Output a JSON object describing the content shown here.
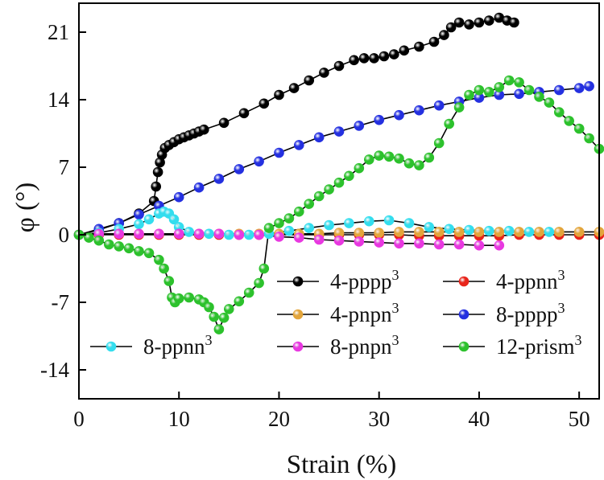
{
  "chart_data": {
    "type": "scatter",
    "xlabel": "Strain (%)",
    "ylabel": "φ (°)",
    "xlim": [
      0,
      52
    ],
    "ylim": [
      -17,
      24
    ],
    "xticks": [
      0,
      10,
      20,
      30,
      40,
      50
    ],
    "yticks": [
      -14,
      -7,
      0,
      7,
      14,
      21
    ],
    "grid": false,
    "legend_position": "lower-right",
    "series": [
      {
        "name": "4-pppp",
        "name_sup": "3",
        "color": "#000000",
        "x": [
          0,
          2,
          4,
          6,
          7.5,
          7.7,
          7.9,
          8.1,
          8.3,
          8.6,
          9,
          9.5,
          10,
          10.5,
          11,
          11.5,
          12,
          12.5,
          14.5,
          16.5,
          18.5,
          20,
          21.5,
          23,
          24.5,
          26,
          27.5,
          28.5,
          29.5,
          30.5,
          31.5,
          32.5,
          34,
          35.5,
          36.5,
          37.2,
          38,
          39,
          40,
          41,
          42,
          42.8,
          43.5
        ],
        "y": [
          0,
          0.5,
          1.2,
          2.2,
          3.5,
          5,
          6.5,
          7.5,
          8.3,
          9,
          9.3,
          9.6,
          9.9,
          10.1,
          10.3,
          10.5,
          10.7,
          10.9,
          11.6,
          12.6,
          13.6,
          14.5,
          15.2,
          16,
          16.8,
          17.5,
          18.1,
          18.3,
          18.3,
          18.5,
          18.7,
          19.1,
          19.5,
          20,
          20.7,
          21.5,
          22,
          21.8,
          22,
          22.2,
          22.5,
          22.2,
          22
        ],
        "show_line": true
      },
      {
        "name": "4-ppnn",
        "name_sup": "3",
        "color": "#e8251b",
        "x": [
          0,
          2,
          4,
          6,
          8,
          10,
          12,
          14,
          16,
          18,
          20,
          22,
          24,
          26,
          28,
          30,
          32,
          34,
          36,
          38,
          40,
          42,
          44,
          46,
          48,
          50,
          52
        ],
        "y": [
          0,
          0,
          0,
          0,
          0,
          0,
          0,
          0,
          0,
          0,
          0,
          0,
          0,
          0,
          0,
          0,
          0,
          -0.1,
          -0.1,
          -0.1,
          -0.1,
          -0.1,
          0,
          0,
          0,
          0,
          0
        ],
        "show_line": true
      },
      {
        "name": "4-pnpn",
        "name_sup": "3",
        "color": "#e3a53b",
        "x": [
          0,
          2,
          4,
          6,
          8,
          10,
          12,
          14,
          16,
          18,
          20,
          22,
          24,
          26,
          28,
          30,
          32,
          34,
          36,
          38,
          40,
          42,
          44,
          46,
          48,
          50,
          52
        ],
        "y": [
          0,
          0.1,
          0.1,
          0.1,
          0.1,
          0.1,
          0.1,
          0.1,
          0.1,
          0.1,
          0.1,
          0.1,
          0.1,
          0.2,
          0.2,
          0.2,
          0.3,
          0.3,
          0.3,
          0.3,
          0.3,
          0.3,
          0.3,
          0.3,
          0.3,
          0.3,
          0.3
        ],
        "show_line": true
      },
      {
        "name": "8-pppp",
        "name_sup": "3",
        "color": "#2430e0",
        "x": [
          0,
          2,
          4,
          6,
          8,
          10,
          12,
          14,
          16,
          18,
          20,
          22,
          24,
          26,
          28,
          30,
          32,
          34,
          36,
          38,
          40,
          42,
          44,
          46,
          48,
          50,
          51
        ],
        "y": [
          0,
          0.6,
          1.2,
          2.1,
          3,
          3.9,
          4.9,
          5.8,
          6.8,
          7.6,
          8.5,
          9.3,
          10.1,
          10.7,
          11.3,
          11.9,
          12.4,
          12.9,
          13.4,
          13.8,
          14.2,
          14.5,
          14.6,
          14.8,
          15,
          15.2,
          15.4
        ],
        "show_line": true
      },
      {
        "name": "8-ppnn",
        "name_sup": "3",
        "color": "#33ddee",
        "x": [
          0,
          2,
          4,
          6,
          7,
          8,
          8.5,
          9,
          9.5,
          10,
          11,
          13,
          15,
          17,
          19,
          21,
          23,
          25,
          27,
          29,
          31,
          33,
          35,
          37,
          39,
          41,
          43,
          45,
          47
        ],
        "y": [
          0,
          0.2,
          0.6,
          1.1,
          1.6,
          2.2,
          2.4,
          2.2,
          1.6,
          0.8,
          0.3,
          0.1,
          0,
          0,
          0.1,
          0.4,
          0.7,
          1,
          1.2,
          1.4,
          1.5,
          1.2,
          0.8,
          0.6,
          0.5,
          0.4,
          0.4,
          0.3,
          0.3
        ],
        "show_line": true
      },
      {
        "name": "8-pnpn",
        "name_sup": "3",
        "color": "#e838e0",
        "x": [
          0,
          2,
          4,
          6,
          8,
          10,
          12,
          14,
          16,
          18,
          20,
          22,
          24,
          26,
          28,
          30,
          32,
          34,
          36,
          38,
          40,
          42
        ],
        "y": [
          0,
          0.1,
          0.1,
          0.1,
          0.1,
          0.1,
          0.1,
          0.1,
          0,
          0,
          -0.2,
          -0.3,
          -0.5,
          -0.6,
          -0.7,
          -0.8,
          -0.9,
          -0.9,
          -1,
          -1,
          -1.1,
          -1.1
        ],
        "show_line": true
      },
      {
        "name": "12-prism",
        "name_sup": "3",
        "color": "#2cc12c",
        "x": [
          0,
          1,
          2,
          3,
          4,
          5,
          6,
          7,
          8,
          8.5,
          9,
          9.3,
          9.6,
          10,
          11,
          12,
          12.5,
          13,
          13.5,
          14,
          14.5,
          15,
          16,
          17,
          18,
          18.5,
          19,
          20,
          21,
          22,
          23,
          24,
          25,
          26,
          27,
          28,
          29,
          30,
          31,
          32,
          33,
          34,
          35,
          36,
          37,
          38,
          39,
          40,
          41,
          42,
          43,
          44,
          45,
          46,
          47,
          48,
          49,
          50,
          51,
          52
        ],
        "y": [
          0,
          -0.3,
          -0.6,
          -1,
          -1.2,
          -1.4,
          -1.7,
          -1.9,
          -2.6,
          -3.5,
          -4.8,
          -6.5,
          -7,
          -6.6,
          -6.5,
          -6.7,
          -7,
          -7.5,
          -8.5,
          -9.8,
          -8.6,
          -7.7,
          -6.9,
          -6,
          -5,
          -3.5,
          0.7,
          1.2,
          1.7,
          2.4,
          3.2,
          4,
          4.7,
          5.4,
          6.1,
          6.9,
          7.8,
          8.2,
          8.1,
          7.9,
          7.4,
          7.2,
          8,
          9.5,
          11.5,
          13.2,
          14.5,
          15,
          14.8,
          15.3,
          16,
          15.8,
          15,
          14.3,
          13.7,
          12.7,
          11.8,
          11,
          10,
          8.9
        ],
        "show_line": true
      }
    ]
  }
}
